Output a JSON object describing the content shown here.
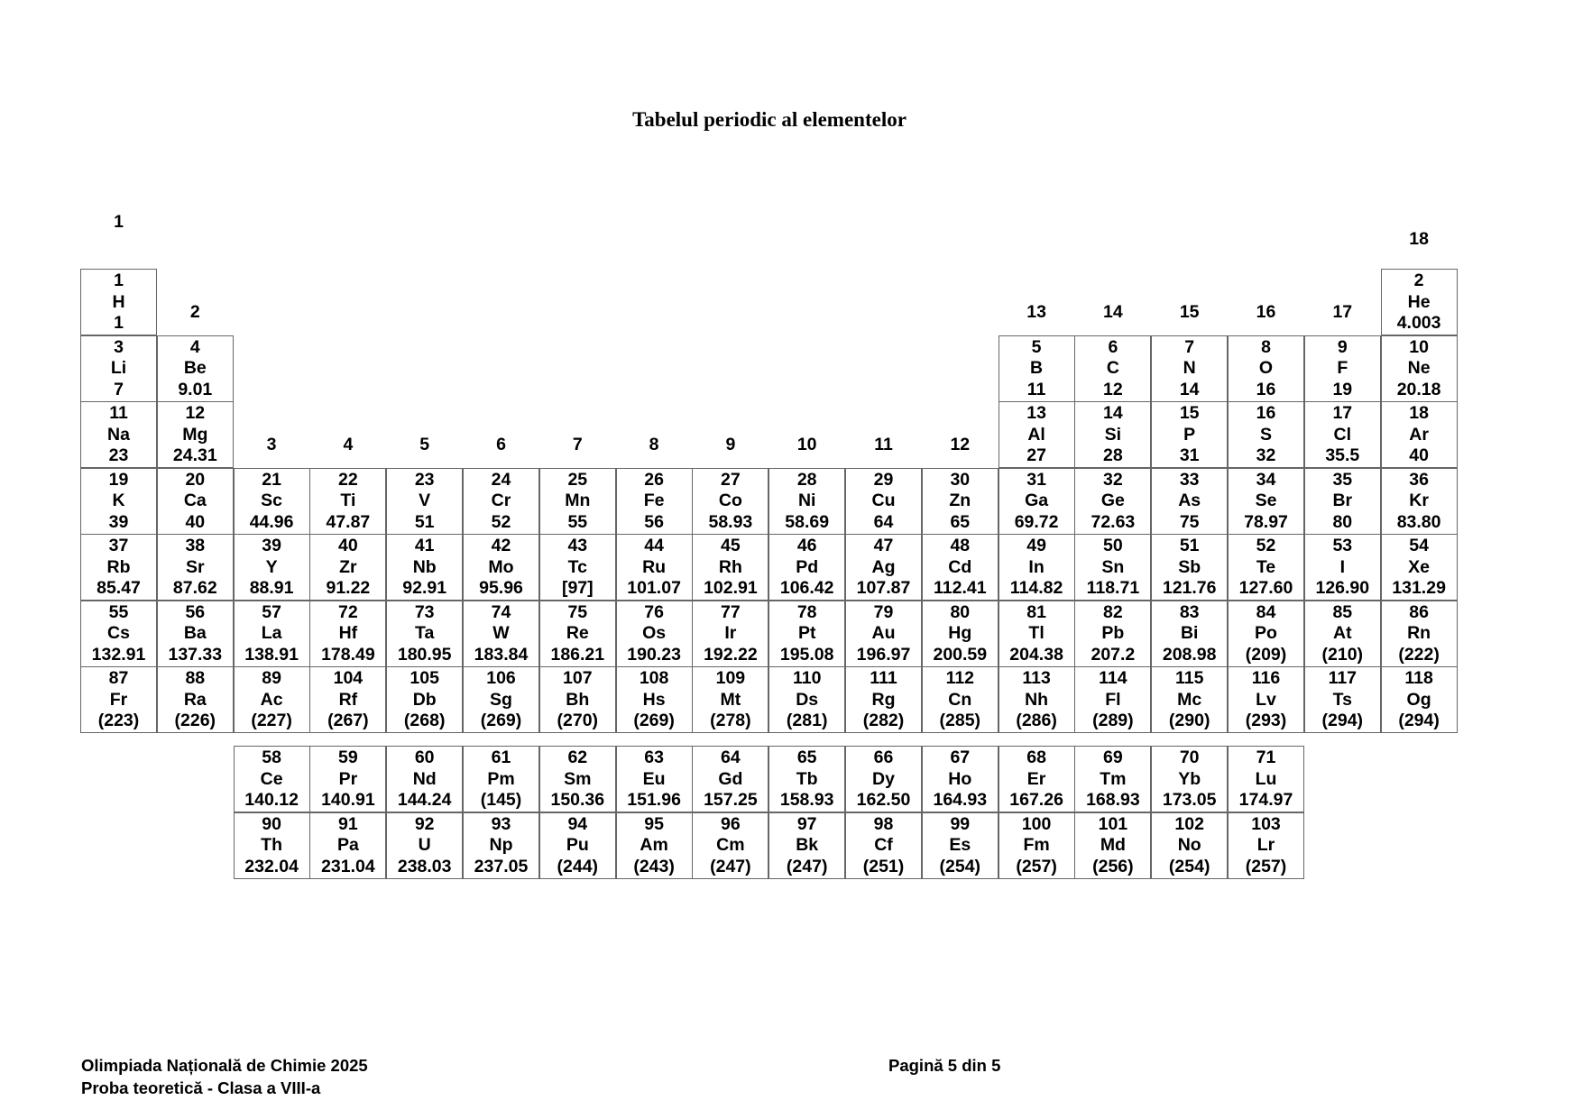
{
  "title": "Tabelul periodic al elementelor",
  "group_labels": [
    "1",
    "2",
    "3",
    "4",
    "5",
    "6",
    "7",
    "8",
    "9",
    "10",
    "11",
    "12",
    "13",
    "14",
    "15",
    "16",
    "17",
    "18"
  ],
  "elements": [
    {
      "z": "1",
      "symbol": "H",
      "mass": "1",
      "period": 1,
      "group": 1
    },
    {
      "z": "2",
      "symbol": "He",
      "mass": "4.003",
      "period": 1,
      "group": 18
    },
    {
      "z": "3",
      "symbol": "Li",
      "mass": "7",
      "period": 2,
      "group": 1
    },
    {
      "z": "4",
      "symbol": "Be",
      "mass": "9.01",
      "period": 2,
      "group": 2
    },
    {
      "z": "5",
      "symbol": "B",
      "mass": "11",
      "period": 2,
      "group": 13
    },
    {
      "z": "6",
      "symbol": "C",
      "mass": "12",
      "period": 2,
      "group": 14
    },
    {
      "z": "7",
      "symbol": "N",
      "mass": "14",
      "period": 2,
      "group": 15
    },
    {
      "z": "8",
      "symbol": "O",
      "mass": "16",
      "period": 2,
      "group": 16
    },
    {
      "z": "9",
      "symbol": "F",
      "mass": "19",
      "period": 2,
      "group": 17
    },
    {
      "z": "10",
      "symbol": "Ne",
      "mass": "20.18",
      "period": 2,
      "group": 18
    },
    {
      "z": "11",
      "symbol": "Na",
      "mass": "23",
      "period": 3,
      "group": 1
    },
    {
      "z": "12",
      "symbol": "Mg",
      "mass": "24.31",
      "period": 3,
      "group": 2
    },
    {
      "z": "13",
      "symbol": "Al",
      "mass": "27",
      "period": 3,
      "group": 13
    },
    {
      "z": "14",
      "symbol": "Si",
      "mass": "28",
      "period": 3,
      "group": 14
    },
    {
      "z": "15",
      "symbol": "P",
      "mass": "31",
      "period": 3,
      "group": 15
    },
    {
      "z": "16",
      "symbol": "S",
      "mass": "32",
      "period": 3,
      "group": 16
    },
    {
      "z": "17",
      "symbol": "Cl",
      "mass": "35.5",
      "period": 3,
      "group": 17
    },
    {
      "z": "18",
      "symbol": "Ar",
      "mass": "40",
      "period": 3,
      "group": 18
    },
    {
      "z": "19",
      "symbol": "K",
      "mass": "39",
      "period": 4,
      "group": 1
    },
    {
      "z": "20",
      "symbol": "Ca",
      "mass": "40",
      "period": 4,
      "group": 2
    },
    {
      "z": "21",
      "symbol": "Sc",
      "mass": "44.96",
      "period": 4,
      "group": 3
    },
    {
      "z": "22",
      "symbol": "Ti",
      "mass": "47.87",
      "period": 4,
      "group": 4
    },
    {
      "z": "23",
      "symbol": "V",
      "mass": "51",
      "period": 4,
      "group": 5
    },
    {
      "z": "24",
      "symbol": "Cr",
      "mass": "52",
      "period": 4,
      "group": 6
    },
    {
      "z": "25",
      "symbol": "Mn",
      "mass": "55",
      "period": 4,
      "group": 7
    },
    {
      "z": "26",
      "symbol": "Fe",
      "mass": "56",
      "period": 4,
      "group": 8
    },
    {
      "z": "27",
      "symbol": "Co",
      "mass": "58.93",
      "period": 4,
      "group": 9
    },
    {
      "z": "28",
      "symbol": "Ni",
      "mass": "58.69",
      "period": 4,
      "group": 10
    },
    {
      "z": "29",
      "symbol": "Cu",
      "mass": "64",
      "period": 4,
      "group": 11
    },
    {
      "z": "30",
      "symbol": "Zn",
      "mass": "65",
      "period": 4,
      "group": 12
    },
    {
      "z": "31",
      "symbol": "Ga",
      "mass": "69.72",
      "period": 4,
      "group": 13
    },
    {
      "z": "32",
      "symbol": "Ge",
      "mass": "72.63",
      "period": 4,
      "group": 14
    },
    {
      "z": "33",
      "symbol": "As",
      "mass": "75",
      "period": 4,
      "group": 15
    },
    {
      "z": "34",
      "symbol": "Se",
      "mass": "78.97",
      "period": 4,
      "group": 16
    },
    {
      "z": "35",
      "symbol": "Br",
      "mass": "80",
      "period": 4,
      "group": 17
    },
    {
      "z": "36",
      "symbol": "Kr",
      "mass": "83.80",
      "period": 4,
      "group": 18
    },
    {
      "z": "37",
      "symbol": "Rb",
      "mass": "85.47",
      "period": 5,
      "group": 1
    },
    {
      "z": "38",
      "symbol": "Sr",
      "mass": "87.62",
      "period": 5,
      "group": 2
    },
    {
      "z": "39",
      "symbol": "Y",
      "mass": "88.91",
      "period": 5,
      "group": 3
    },
    {
      "z": "40",
      "symbol": "Zr",
      "mass": "91.22",
      "period": 5,
      "group": 4
    },
    {
      "z": "41",
      "symbol": "Nb",
      "mass": "92.91",
      "period": 5,
      "group": 5
    },
    {
      "z": "42",
      "symbol": "Mo",
      "mass": "95.96",
      "period": 5,
      "group": 6
    },
    {
      "z": "43",
      "symbol": "Tc",
      "mass": "[97]",
      "period": 5,
      "group": 7
    },
    {
      "z": "44",
      "symbol": "Ru",
      "mass": "101.07",
      "period": 5,
      "group": 8
    },
    {
      "z": "45",
      "symbol": "Rh",
      "mass": "102.91",
      "period": 5,
      "group": 9
    },
    {
      "z": "46",
      "symbol": "Pd",
      "mass": "106.42",
      "period": 5,
      "group": 10
    },
    {
      "z": "47",
      "symbol": "Ag",
      "mass": "107.87",
      "period": 5,
      "group": 11
    },
    {
      "z": "48",
      "symbol": "Cd",
      "mass": "112.41",
      "period": 5,
      "group": 12
    },
    {
      "z": "49",
      "symbol": "In",
      "mass": "114.82",
      "period": 5,
      "group": 13
    },
    {
      "z": "50",
      "symbol": "Sn",
      "mass": "118.71",
      "period": 5,
      "group": 14
    },
    {
      "z": "51",
      "symbol": "Sb",
      "mass": "121.76",
      "period": 5,
      "group": 15
    },
    {
      "z": "52",
      "symbol": "Te",
      "mass": "127.60",
      "period": 5,
      "group": 16
    },
    {
      "z": "53",
      "symbol": "I",
      "mass": "126.90",
      "period": 5,
      "group": 17
    },
    {
      "z": "54",
      "symbol": "Xe",
      "mass": "131.29",
      "period": 5,
      "group": 18
    },
    {
      "z": "55",
      "symbol": "Cs",
      "mass": "132.91",
      "period": 6,
      "group": 1
    },
    {
      "z": "56",
      "symbol": "Ba",
      "mass": "137.33",
      "period": 6,
      "group": 2
    },
    {
      "z": "57",
      "symbol": "La",
      "mass": "138.91",
      "period": 6,
      "group": 3
    },
    {
      "z": "72",
      "symbol": "Hf",
      "mass": "178.49",
      "period": 6,
      "group": 4
    },
    {
      "z": "73",
      "symbol": "Ta",
      "mass": "180.95",
      "period": 6,
      "group": 5
    },
    {
      "z": "74",
      "symbol": "W",
      "mass": "183.84",
      "period": 6,
      "group": 6
    },
    {
      "z": "75",
      "symbol": "Re",
      "mass": "186.21",
      "period": 6,
      "group": 7
    },
    {
      "z": "76",
      "symbol": "Os",
      "mass": "190.23",
      "period": 6,
      "group": 8
    },
    {
      "z": "77",
      "symbol": "Ir",
      "mass": "192.22",
      "period": 6,
      "group": 9
    },
    {
      "z": "78",
      "symbol": "Pt",
      "mass": "195.08",
      "period": 6,
      "group": 10
    },
    {
      "z": "79",
      "symbol": "Au",
      "mass": "196.97",
      "period": 6,
      "group": 11
    },
    {
      "z": "80",
      "symbol": "Hg",
      "mass": "200.59",
      "period": 6,
      "group": 12
    },
    {
      "z": "81",
      "symbol": "Tl",
      "mass": "204.38",
      "period": 6,
      "group": 13
    },
    {
      "z": "82",
      "symbol": "Pb",
      "mass": "207.2",
      "period": 6,
      "group": 14
    },
    {
      "z": "83",
      "symbol": "Bi",
      "mass": "208.98",
      "period": 6,
      "group": 15
    },
    {
      "z": "84",
      "symbol": "Po",
      "mass": "(209)",
      "period": 6,
      "group": 16
    },
    {
      "z": "85",
      "symbol": "At",
      "mass": "(210)",
      "period": 6,
      "group": 17
    },
    {
      "z": "86",
      "symbol": "Rn",
      "mass": "(222)",
      "period": 6,
      "group": 18
    },
    {
      "z": "87",
      "symbol": "Fr",
      "mass": "(223)",
      "period": 7,
      "group": 1
    },
    {
      "z": "88",
      "symbol": "Ra",
      "mass": "(226)",
      "period": 7,
      "group": 2
    },
    {
      "z": "89",
      "symbol": "Ac",
      "mass": "(227)",
      "period": 7,
      "group": 3
    },
    {
      "z": "104",
      "symbol": "Rf",
      "mass": "(267)",
      "period": 7,
      "group": 4
    },
    {
      "z": "105",
      "symbol": "Db",
      "mass": "(268)",
      "period": 7,
      "group": 5
    },
    {
      "z": "106",
      "symbol": "Sg",
      "mass": "(269)",
      "period": 7,
      "group": 6
    },
    {
      "z": "107",
      "symbol": "Bh",
      "mass": "(270)",
      "period": 7,
      "group": 7
    },
    {
      "z": "108",
      "symbol": "Hs",
      "mass": "(269)",
      "period": 7,
      "group": 8
    },
    {
      "z": "109",
      "symbol": "Mt",
      "mass": "(278)",
      "period": 7,
      "group": 9
    },
    {
      "z": "110",
      "symbol": "Ds",
      "mass": "(281)",
      "period": 7,
      "group": 10
    },
    {
      "z": "111",
      "symbol": "Rg",
      "mass": "(282)",
      "period": 7,
      "group": 11
    },
    {
      "z": "112",
      "symbol": "Cn",
      "mass": "(285)",
      "period": 7,
      "group": 12
    },
    {
      "z": "113",
      "symbol": "Nh",
      "mass": "(286)",
      "period": 7,
      "group": 13
    },
    {
      "z": "114",
      "symbol": "Fl",
      "mass": "(289)",
      "period": 7,
      "group": 14
    },
    {
      "z": "115",
      "symbol": "Mc",
      "mass": "(290)",
      "period": 7,
      "group": 15
    },
    {
      "z": "116",
      "symbol": "Lv",
      "mass": "(293)",
      "period": 7,
      "group": 16
    },
    {
      "z": "117",
      "symbol": "Ts",
      "mass": "(294)",
      "period": 7,
      "group": 17
    },
    {
      "z": "118",
      "symbol": "Og",
      "mass": "(294)",
      "period": 7,
      "group": 18
    }
  ],
  "lanthanides": [
    {
      "z": "58",
      "symbol": "Ce",
      "mass": "140.12"
    },
    {
      "z": "59",
      "symbol": "Pr",
      "mass": "140.91"
    },
    {
      "z": "60",
      "symbol": "Nd",
      "mass": "144.24"
    },
    {
      "z": "61",
      "symbol": "Pm",
      "mass": "(145)"
    },
    {
      "z": "62",
      "symbol": "Sm",
      "mass": "150.36"
    },
    {
      "z": "63",
      "symbol": "Eu",
      "mass": "151.96"
    },
    {
      "z": "64",
      "symbol": "Gd",
      "mass": "157.25"
    },
    {
      "z": "65",
      "symbol": "Tb",
      "mass": "158.93"
    },
    {
      "z": "66",
      "symbol": "Dy",
      "mass": "162.50"
    },
    {
      "z": "67",
      "symbol": "Ho",
      "mass": "164.93"
    },
    {
      "z": "68",
      "symbol": "Er",
      "mass": "167.26"
    },
    {
      "z": "69",
      "symbol": "Tm",
      "mass": "168.93"
    },
    {
      "z": "70",
      "symbol": "Yb",
      "mass": "173.05"
    },
    {
      "z": "71",
      "symbol": "Lu",
      "mass": "174.97"
    }
  ],
  "actinides": [
    {
      "z": "90",
      "symbol": "Th",
      "mass": "232.04"
    },
    {
      "z": "91",
      "symbol": "Pa",
      "mass": "231.04"
    },
    {
      "z": "92",
      "symbol": "U",
      "mass": "238.03"
    },
    {
      "z": "93",
      "symbol": "Np",
      "mass": "237.05"
    },
    {
      "z": "94",
      "symbol": "Pu",
      "mass": "(244)"
    },
    {
      "z": "95",
      "symbol": "Am",
      "mass": "(243)"
    },
    {
      "z": "96",
      "symbol": "Cm",
      "mass": "(247)"
    },
    {
      "z": "97",
      "symbol": "Bk",
      "mass": "(247)"
    },
    {
      "z": "98",
      "symbol": "Cf",
      "mass": "(251)"
    },
    {
      "z": "99",
      "symbol": "Es",
      "mass": "(254)"
    },
    {
      "z": "100",
      "symbol": "Fm",
      "mass": "(257)"
    },
    {
      "z": "101",
      "symbol": "Md",
      "mass": "(256)"
    },
    {
      "z": "102",
      "symbol": "No",
      "mass": "(254)"
    },
    {
      "z": "103",
      "symbol": "Lr",
      "mass": "(257)"
    }
  ],
  "footer": {
    "line1": "Olimpiada Națională de Chimie 2025",
    "line2": "Proba teoretică - Clasa a VIII-a",
    "page": "Pagină 5 din 5"
  }
}
